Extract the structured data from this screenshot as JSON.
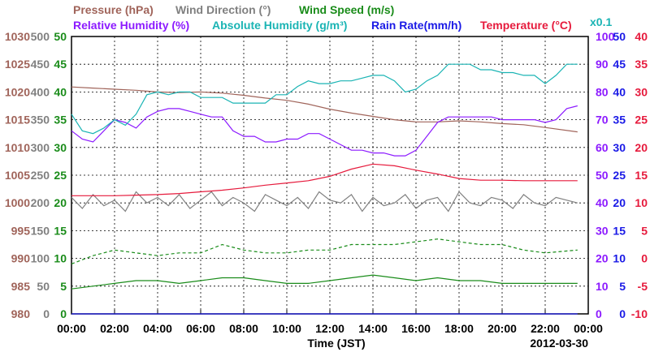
{
  "chart_data": {
    "type": "line",
    "date": "2012-03-30",
    "xlabel": "Time (JST)",
    "x_ticks": [
      "00:00",
      "02:00",
      "04:00",
      "06:00",
      "08:00",
      "10:00",
      "12:00",
      "14:00",
      "16:00",
      "18:00",
      "20:00",
      "22:00",
      "00:00"
    ],
    "colors": {
      "pressure": "#a0645a",
      "wind_direction": "#808080",
      "wind_speed": "#1a8c1a",
      "relative_humidity": "#8c1aff",
      "absolute_humidity": "#1ab4b4",
      "rain_rate": "#1a1ae6",
      "temperature": "#e61a3c"
    },
    "header": {
      "row1": [
        "Pressure (hPa)",
        "Wind Direction (°)",
        "Wind Speed (m/s)"
      ],
      "row2": [
        "Relative Humidity (%)",
        "Absolute Humidity (g/m³)",
        "Rain Rate(mm/h)",
        "Temperature (°C)"
      ],
      "scale_note": "x0.1"
    },
    "axes": {
      "pressure_ticks": [
        "1030",
        "1025",
        "1020",
        "1015",
        "1010",
        "1005",
        "1000",
        "995",
        "990",
        "985",
        "980"
      ],
      "wind_direction_ticks": [
        "500",
        "450",
        "400",
        "350",
        "300",
        "250",
        "200",
        "150",
        "100",
        "50",
        "0"
      ],
      "wind_speed_ticks": [
        "50",
        "45",
        "40",
        "35",
        "30",
        "25",
        "20",
        "15",
        "10",
        "5",
        "0"
      ],
      "humidity_ticks": [
        "100",
        "90",
        "80",
        "70",
        "60",
        "50",
        "40",
        "30",
        "20",
        "10",
        "0"
      ],
      "rain_rate_ticks": [
        "50",
        "45",
        "40",
        "35",
        "30",
        "25",
        "20",
        "15",
        "10",
        "5",
        "0"
      ],
      "temperature_ticks": [
        "40",
        "35",
        "30",
        "25",
        "20",
        "15",
        "10",
        "5",
        "0",
        "-5",
        "-10"
      ]
    },
    "ylim": {
      "pressure": [
        980,
        1030
      ],
      "wind_direction": [
        0,
        500
      ],
      "wind_speed": [
        0,
        50
      ],
      "humidity": [
        0,
        100
      ],
      "rain_rate": [
        0,
        50
      ],
      "temperature": [
        -10,
        40
      ]
    },
    "series": [
      {
        "name": "Pressure (hPa)",
        "color": "#a0645a",
        "axis": "pressure",
        "x": [
          0,
          1,
          2,
          3,
          4,
          5,
          6,
          7,
          8,
          9,
          10,
          11,
          12,
          13,
          14,
          15,
          16,
          17,
          18,
          19,
          20,
          21,
          22,
          23.5
        ],
        "y": [
          1020.9,
          1020.7,
          1020.5,
          1020.3,
          1020.0,
          1019.9,
          1020.0,
          1019.8,
          1019.4,
          1018.9,
          1018.5,
          1017.8,
          1016.9,
          1016.2,
          1015.6,
          1015.0,
          1014.6,
          1014.6,
          1014.8,
          1014.6,
          1014.3,
          1014.1,
          1013.6,
          1012.8
        ]
      },
      {
        "name": "Wind Direction (°)",
        "color": "#808080",
        "axis": "wind_direction",
        "x": [
          0,
          0.5,
          1,
          1.5,
          2,
          2.5,
          3,
          3.5,
          4,
          4.5,
          5,
          5.5,
          6,
          6.5,
          7,
          7.5,
          8,
          8.5,
          9,
          9.5,
          10,
          10.5,
          11,
          11.5,
          12,
          12.5,
          13,
          13.5,
          14,
          14.5,
          15,
          15.5,
          16,
          16.5,
          17,
          17.5,
          18,
          18.5,
          19,
          19.5,
          20,
          20.5,
          21,
          21.5,
          22,
          22.5,
          23,
          23.5
        ],
        "y": [
          210,
          190,
          215,
          195,
          205,
          185,
          220,
          200,
          210,
          195,
          215,
          190,
          205,
          220,
          195,
          210,
          200,
          185,
          215,
          205,
          195,
          210,
          190,
          220,
          205,
          200,
          215,
          185,
          210,
          195,
          200,
          215,
          190,
          205,
          210,
          185,
          220,
          200,
          195,
          210,
          205,
          190,
          215,
          200,
          195,
          210,
          205,
          200
        ]
      },
      {
        "name": "Wind Speed (m/s)",
        "color": "#1a8c1a",
        "axis": "wind_speed",
        "x": [
          0,
          1,
          2,
          3,
          4,
          5,
          6,
          7,
          8,
          9,
          10,
          11,
          12,
          13,
          14,
          15,
          16,
          17,
          18,
          19,
          20,
          21,
          22,
          23.5
        ],
        "y": [
          4.5,
          5.0,
          5.5,
          6.0,
          6.0,
          5.5,
          6.0,
          6.5,
          6.5,
          6.0,
          5.5,
          5.5,
          6.0,
          6.5,
          7.0,
          6.5,
          6.0,
          6.5,
          6.0,
          6.0,
          5.5,
          5.5,
          5.5,
          5.5
        ]
      },
      {
        "name": "Wind Speed gust (m/s)",
        "color": "#1a8c1a",
        "axis": "wind_speed",
        "x": [
          0,
          1,
          2,
          3,
          4,
          5,
          6,
          7,
          8,
          9,
          10,
          11,
          12,
          13,
          14,
          15,
          16,
          17,
          18,
          19,
          20,
          21,
          22,
          23.5
        ],
        "y": [
          9.0,
          10.5,
          11.5,
          11.0,
          10.5,
          11.0,
          11.0,
          12.5,
          11.5,
          11.0,
          11.0,
          11.5,
          11.5,
          12.5,
          12.5,
          12.5,
          13.0,
          13.5,
          13.0,
          12.5,
          12.5,
          11.5,
          11.0,
          11.5
        ]
      },
      {
        "name": "Relative Humidity (%)",
        "color": "#8c1aff",
        "axis": "humidity",
        "x": [
          0,
          0.5,
          1,
          1.5,
          2,
          2.5,
          3,
          3.5,
          4,
          4.5,
          5,
          5.5,
          6,
          6.5,
          7,
          7.5,
          8,
          8.5,
          9,
          9.5,
          10,
          10.5,
          11,
          11.5,
          12,
          12.5,
          13,
          13.5,
          14,
          14.5,
          15,
          15.5,
          16,
          16.5,
          17,
          17.5,
          18,
          18.5,
          19,
          19.5,
          20,
          20.5,
          21,
          21.5,
          22,
          22.5,
          23,
          23.5
        ],
        "y": [
          66,
          63,
          62,
          66,
          70,
          69,
          67,
          71,
          73,
          74,
          74,
          73,
          72,
          71,
          71,
          66,
          64,
          64,
          62,
          62,
          63,
          63,
          65,
          65,
          63,
          61,
          59,
          59,
          58,
          58,
          57,
          57,
          59,
          64,
          69,
          71,
          71,
          71,
          71,
          71,
          70,
          70,
          70,
          70,
          69,
          70,
          74,
          75
        ]
      },
      {
        "name": "Absolute Humidity (g/m³)",
        "color": "#1ab4b4",
        "axis": "humidity",
        "x": [
          0,
          0.5,
          1,
          1.5,
          2,
          2.5,
          3,
          3.5,
          4,
          4.5,
          5,
          5.5,
          6,
          6.5,
          7,
          7.5,
          8,
          8.5,
          9,
          9.5,
          10,
          10.5,
          11,
          11.5,
          12,
          12.5,
          13,
          13.5,
          14,
          14.5,
          15,
          15.5,
          16,
          16.5,
          17,
          17.5,
          18,
          18.5,
          19,
          19.5,
          20,
          20.5,
          21,
          21.5,
          22,
          22.5,
          23,
          23.5
        ],
        "y": [
          72,
          66,
          65,
          67,
          70,
          68,
          72,
          79,
          80,
          79,
          80,
          80,
          78,
          78,
          78,
          76,
          76,
          76,
          76,
          79,
          79,
          82,
          84,
          83,
          83,
          84,
          84,
          85,
          86,
          86,
          84,
          80,
          81,
          84,
          86,
          90,
          90,
          90,
          88,
          88,
          87,
          87,
          86,
          86,
          83,
          86,
          90,
          90
        ]
      },
      {
        "name": "Rain Rate(mm/h)",
        "color": "#1a1ae6",
        "axis": "rain_rate",
        "x": [
          0,
          23.5
        ],
        "y": [
          0,
          0
        ]
      },
      {
        "name": "Temperature (°C)",
        "color": "#e61a3c",
        "axis": "temperature",
        "x": [
          0,
          1,
          2,
          3,
          4,
          5,
          6,
          7,
          8,
          9,
          10,
          11,
          12,
          13,
          14,
          15,
          16,
          17,
          18,
          19,
          20,
          21,
          22,
          23.5
        ],
        "y": [
          11.3,
          11.3,
          11.3,
          11.4,
          11.5,
          11.7,
          12.0,
          12.3,
          12.7,
          13.2,
          13.6,
          14.0,
          14.8,
          16.1,
          17.0,
          16.7,
          15.9,
          15.2,
          14.4,
          14.1,
          14.1,
          14.0,
          14.0,
          14.0
        ]
      }
    ]
  }
}
